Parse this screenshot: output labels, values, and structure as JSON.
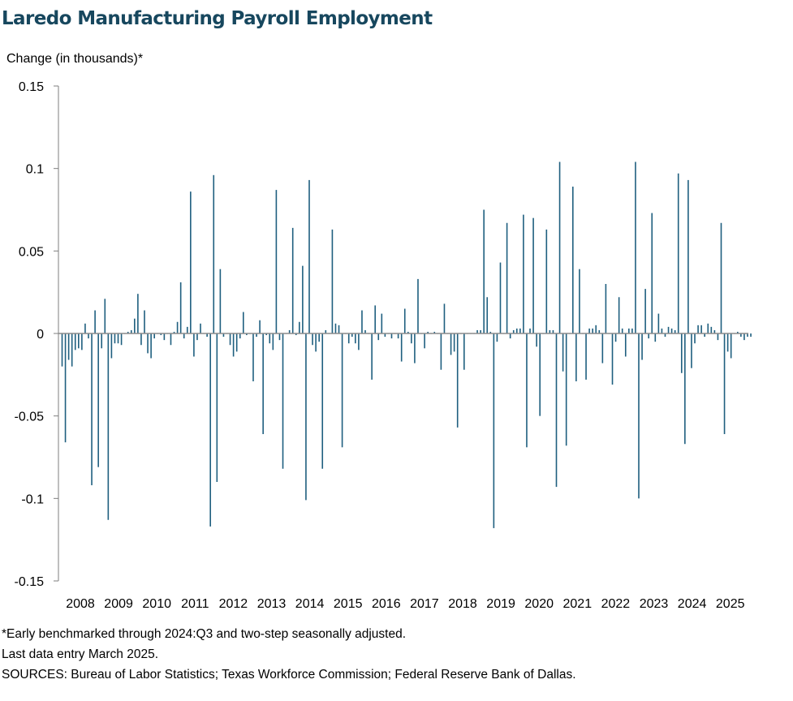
{
  "chart_data": {
    "type": "bar",
    "title": "Laredo Manufacturing Payroll Employment",
    "ylabel": "Change (in thousands)*",
    "xlabel": "",
    "ylim": [
      -0.15,
      0.15
    ],
    "yticks": [
      0.15,
      0.1,
      0.05,
      0,
      -0.05,
      -0.1,
      -0.15
    ],
    "ytick_labels": [
      "0.15",
      "0.1",
      "0.05",
      "0",
      "-0.05",
      "-0.1",
      "-0.15"
    ],
    "xtick_labels": [
      "2008",
      "2009",
      "2010",
      "2011",
      "2012",
      "2013",
      "2014",
      "2015",
      "2016",
      "2017",
      "2018",
      "2019",
      "2020",
      "2021",
      "2022",
      "2023",
      "2024",
      "2025"
    ],
    "start": "2008-01",
    "end": "2025-03",
    "frequency": "monthly",
    "bar_color": "#1f5f7f",
    "values": [
      -0.02,
      -0.066,
      -0.016,
      -0.02,
      -0.01,
      -0.009,
      -0.01,
      0.006,
      -0.003,
      -0.092,
      0.014,
      -0.081,
      -0.009,
      0.021,
      -0.113,
      -0.015,
      -0.006,
      -0.006,
      -0.007,
      0.0,
      0.001,
      0.002,
      0.009,
      0.024,
      -0.007,
      0.014,
      -0.012,
      -0.015,
      -0.003,
      0.0,
      -0.001,
      -0.004,
      0.0,
      -0.007,
      0.001,
      0.007,
      0.031,
      -0.003,
      0.004,
      0.086,
      -0.014,
      -0.004,
      0.006,
      0.0,
      -0.002,
      -0.117,
      0.096,
      -0.09,
      0.039,
      -0.002,
      0.0,
      -0.007,
      -0.014,
      -0.011,
      -0.003,
      0.013,
      -0.001,
      0.0,
      -0.029,
      -0.002,
      0.008,
      -0.061,
      -0.001,
      -0.006,
      -0.01,
      0.087,
      -0.004,
      -0.082,
      0.0,
      0.002,
      0.064,
      -0.001,
      0.007,
      0.041,
      -0.101,
      0.093,
      -0.007,
      -0.011,
      -0.005,
      -0.082,
      0.002,
      0.0,
      0.063,
      0.006,
      0.005,
      -0.069,
      0.0,
      -0.006,
      -0.002,
      -0.006,
      -0.01,
      0.014,
      0.002,
      0.0,
      -0.028,
      0.017,
      -0.004,
      0.012,
      -0.002,
      0.0,
      -0.003,
      0.0,
      -0.003,
      -0.017,
      0.015,
      0.001,
      -0.006,
      -0.018,
      0.033,
      0.0,
      -0.009,
      0.001,
      0.0,
      0.001,
      0.0,
      -0.022,
      0.018,
      0.0,
      -0.013,
      -0.011,
      -0.057,
      0.0,
      -0.022,
      0.0,
      0.0,
      0.0,
      0.002,
      0.002,
      0.075,
      0.022,
      0.001,
      -0.118,
      -0.005,
      0.043,
      0.0,
      0.067,
      -0.003,
      0.002,
      0.003,
      0.003,
      0.072,
      -0.069,
      0.003,
      0.07,
      -0.008,
      -0.05,
      0.0,
      0.063,
      0.002,
      0.002,
      -0.093,
      0.104,
      -0.023,
      -0.068,
      0.0,
      0.089,
      -0.029,
      0.039,
      0.0,
      -0.028,
      0.003,
      0.003,
      0.005,
      0.002,
      -0.018,
      0.03,
      0.0,
      -0.031,
      -0.005,
      0.022,
      0.003,
      -0.014,
      0.003,
      0.003,
      0.104,
      -0.1,
      -0.016,
      0.027,
      -0.003,
      0.073,
      -0.005,
      0.012,
      0.003,
      -0.002,
      0.004,
      0.003,
      0.002,
      0.097,
      -0.024,
      -0.067,
      0.093,
      -0.021,
      -0.006,
      0.005,
      0.005,
      -0.002,
      0.006,
      0.004,
      0.002,
      -0.004,
      0.067,
      -0.061,
      -0.011,
      -0.015,
      0.0,
      0.001,
      -0.002,
      -0.004,
      -0.002,
      -0.002
    ]
  },
  "notes": {
    "line1": "*Early benchmarked through 2024:Q3 and two-step seasonally adjusted.",
    "line2": "Last data entry March 2025.",
    "line3": "SOURCES: Bureau of Labor Statistics; Texas Workforce Commission; Federal Reserve Bank of Dallas."
  }
}
